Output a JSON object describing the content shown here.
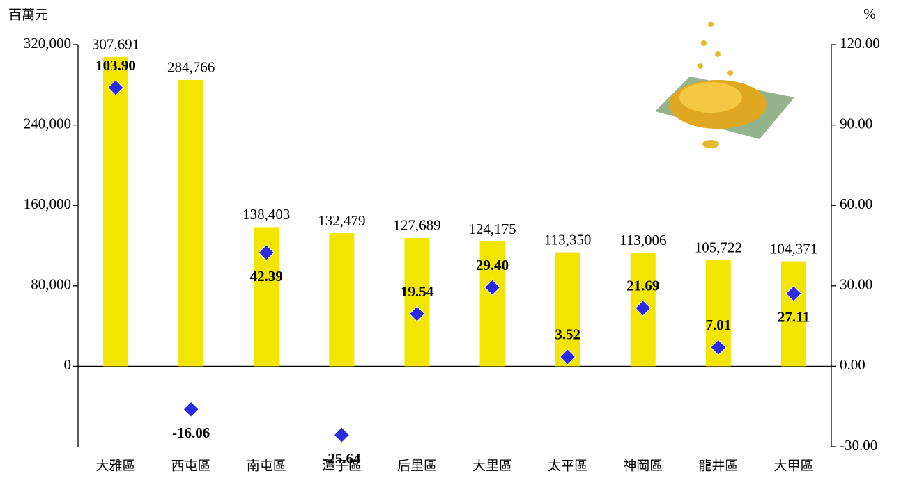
{
  "chart_data": {
    "type": "bar",
    "y_label": "百萬元",
    "y2_label": "%",
    "categories": [
      "大雅區",
      "西屯區",
      "南屯區",
      "潭子區",
      "后里區",
      "大里區",
      "太平區",
      "神岡區",
      "龍井區",
      "大甲區"
    ],
    "series": [
      {
        "color": "#f2e600",
        "values": [
          307691,
          284766,
          138403,
          132479,
          127689,
          124175,
          113350,
          113006,
          105722,
          104371
        ],
        "value_labels": [
          "307,691",
          "284,766",
          "138,403",
          "132,479",
          "127,689",
          "124,175",
          "113,350",
          "113,006",
          "105,722",
          "104,371"
        ]
      },
      {
        "color": "#2a2ae0",
        "axis": "y2",
        "marker": "diamond",
        "values": [
          103.9,
          -16.06,
          42.39,
          -25.64,
          19.54,
          29.4,
          3.52,
          21.69,
          7.01,
          27.11
        ],
        "value_labels": [
          "103.90",
          "-16.06",
          "42.39",
          "-25.64",
          "19.54",
          "29.40",
          "3.52",
          "21.69",
          "7.01",
          "27.11"
        ]
      }
    ],
    "ylim": [
      -80000,
      320000
    ],
    "yticks": [
      0,
      {
        "value": 80000,
        "label": "80,000"
      },
      {
        "value": 160000,
        "label": "160,000"
      },
      {
        "value": 240000,
        "label": "240,000"
      },
      {
        "value": 320000,
        "label": "320,000"
      }
    ],
    "y2lim": [
      -30,
      120
    ],
    "y2ticks": [
      {
        "value": -30,
        "label": "-30.00"
      },
      {
        "value": 0,
        "label": "0.00"
      },
      {
        "value": 30,
        "label": "30.00"
      },
      {
        "value": 60,
        "label": "60.00"
      },
      {
        "value": 90,
        "label": "90.00"
      },
      {
        "value": 120,
        "label": "120.00"
      }
    ]
  }
}
